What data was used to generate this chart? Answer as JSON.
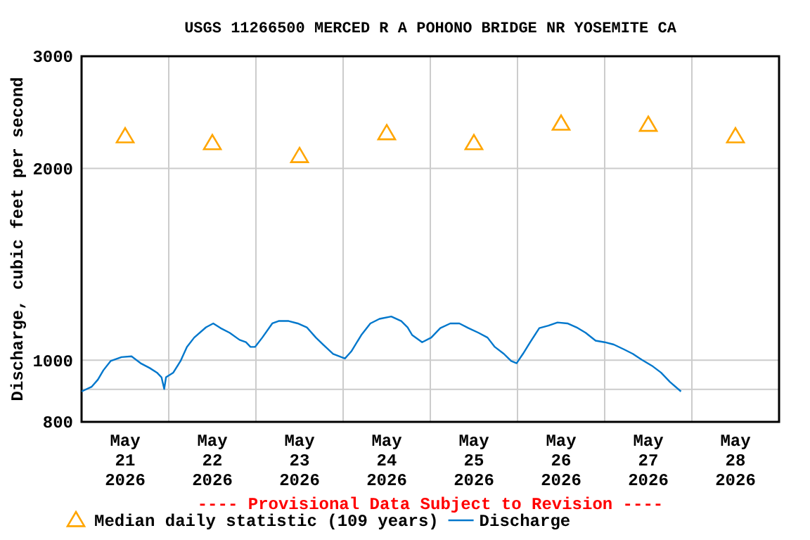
{
  "chart_data": {
    "type": "line",
    "title": "USGS 11266500 MERCED R A POHONO BRIDGE NR YOSEMITE CA",
    "ylabel": "Discharge, cubic feet per second",
    "log": true,
    "grid": true,
    "legend": "bottom",
    "annotations": [
      "---- Provisional Data Subject to Revision ----"
    ],
    "xlim": [
      "2026-05-21T00:00",
      "2026-05-29T00:00"
    ],
    "xticks": [
      {
        "value": "2026-05-21T12:00",
        "label": "May\n21\n2026"
      },
      {
        "value": "2026-05-22T00:00",
        "label": null
      },
      {
        "value": "2026-05-22T12:00",
        "label": "May\n22\n2026"
      },
      {
        "value": "2026-05-23T00:00",
        "label": null
      },
      {
        "value": "2026-05-23T12:00",
        "label": "May\n23\n2026"
      },
      {
        "value": "2026-05-24T00:00",
        "label": null
      },
      {
        "value": "2026-05-24T12:00",
        "label": "May\n24\n2026"
      },
      {
        "value": "2026-05-25T00:00",
        "label": null
      },
      {
        "value": "2026-05-25T12:00",
        "label": "May\n25\n2026"
      },
      {
        "value": "2026-05-26T00:00",
        "label": null
      },
      {
        "value": "2026-05-26T12:00",
        "label": "May\n26\n2026"
      },
      {
        "value": "2026-05-27T00:00",
        "label": null
      },
      {
        "value": "2026-05-27T12:00",
        "label": "May\n27\n2026"
      },
      {
        "value": "2026-05-28T00:00",
        "label": null
      },
      {
        "value": "2026-05-28T12:00",
        "label": "May\n28\n2026"
      }
    ],
    "ylim": [
      800,
      3000
    ],
    "yticks": [
      800,
      {
        "value": 900,
        "label": null
      },
      1000,
      2000,
      3000
    ],
    "series": [
      {
        "name": "Median daily statistic (109 years)",
        "type": "scatter",
        "marker": "triangle",
        "color": "#ffa500",
        "x": [
          "2026-05-21T12:00",
          "2026-05-22T12:00",
          "2026-05-23T12:00",
          "2026-05-24T12:00",
          "2026-05-25T12:00",
          "2026-05-26T12:00",
          "2026-05-27T12:00",
          "2026-05-28T12:00"
        ],
        "values": [
          2245,
          2190,
          2090,
          2270,
          2190,
          2350,
          2340,
          2245
        ]
      },
      {
        "name": "Discharge",
        "marker": "none",
        "color": "#0077cc",
        "x": [
          "2026-05-21T00:00",
          "2026-05-21T02:45",
          "2026-05-21T04:30",
          "2026-05-21T06:00",
          "2026-05-21T08:00",
          "2026-05-21T11:00",
          "2026-05-21T13:45",
          "2026-05-21T16:15",
          "2026-05-21T18:45",
          "2026-05-21T20:45",
          "2026-05-21T22:00",
          "2026-05-21T22:45",
          "2026-05-21T23:15",
          "2026-05-22T01:15",
          "2026-05-22T03:15",
          "2026-05-22T05:00",
          "2026-05-22T07:00",
          "2026-05-22T10:15",
          "2026-05-22T12:15",
          "2026-05-22T14:15",
          "2026-05-22T16:45",
          "2026-05-22T19:30",
          "2026-05-22T21:15",
          "2026-05-22T22:30",
          "2026-05-22T23:45",
          "2026-05-23T01:45",
          "2026-05-23T04:30",
          "2026-05-23T06:15",
          "2026-05-23T09:00",
          "2026-05-23T11:30",
          "2026-05-23T14:00",
          "2026-05-23T16:30",
          "2026-05-23T18:30",
          "2026-05-23T21:15",
          "2026-05-24T00:30",
          "2026-05-24T02:15",
          "2026-05-24T05:00",
          "2026-05-24T07:30",
          "2026-05-24T10:00",
          "2026-05-24T13:15",
          "2026-05-24T16:00",
          "2026-05-24T17:45",
          "2026-05-24T19:00",
          "2026-05-24T21:45",
          "2026-05-25T00:15",
          "2026-05-25T02:45",
          "2026-05-25T05:30",
          "2026-05-25T08:00",
          "2026-05-25T10:30",
          "2026-05-25T13:15",
          "2026-05-25T15:45",
          "2026-05-25T17:45",
          "2026-05-25T20:15",
          "2026-05-25T22:15",
          "2026-05-25T23:45",
          "2026-05-26T01:30",
          "2026-05-26T03:30",
          "2026-05-26T06:00",
          "2026-05-26T08:30",
          "2026-05-26T11:00",
          "2026-05-26T13:45",
          "2026-05-26T16:15",
          "2026-05-26T18:45",
          "2026-05-26T21:30",
          "2026-05-27T00:00",
          "2026-05-27T02:30",
          "2026-05-27T05:15",
          "2026-05-27T07:45",
          "2026-05-27T10:15",
          "2026-05-27T13:00",
          "2026-05-27T15:30",
          "2026-05-27T18:00",
          "2026-05-27T21:00"
        ],
        "values": [
          893,
          908,
          932,
          964,
          997,
          1011,
          1014,
          989,
          972,
          956,
          940,
          901,
          940,
          956,
          997,
          1049,
          1085,
          1126,
          1142,
          1123,
          1104,
          1076,
          1067,
          1049,
          1049,
          1085,
          1142,
          1152,
          1152,
          1142,
          1126,
          1085,
          1058,
          1023,
          1006,
          1032,
          1095,
          1142,
          1161,
          1171,
          1152,
          1126,
          1095,
          1067,
          1085,
          1123,
          1142,
          1142,
          1123,
          1104,
          1085,
          1049,
          1023,
          997,
          989,
          1023,
          1067,
          1123,
          1133,
          1146,
          1142,
          1126,
          1104,
          1073,
          1067,
          1058,
          1040,
          1023,
          1001,
          980,
          956,
          924,
          893
        ]
      }
    ]
  }
}
